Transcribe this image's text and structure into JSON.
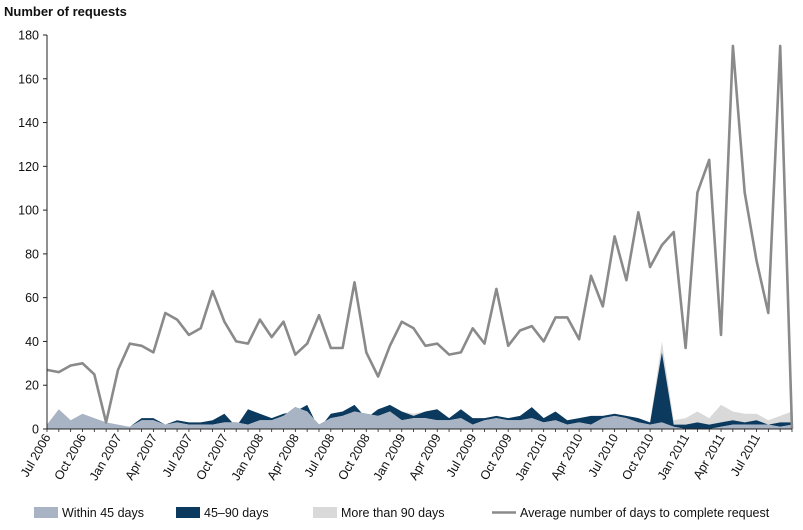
{
  "chart_data": {
    "type": "area",
    "ylabel": "Number of requests",
    "ylim": [
      0,
      180
    ],
    "yticks": [
      0,
      20,
      40,
      60,
      80,
      100,
      120,
      140,
      160,
      180
    ],
    "xtick_labels": [
      "Jul 2006",
      "Oct 2006",
      "Jan 2007",
      "Apr 2007",
      "Jul 2007",
      "Oct 2007",
      "Jan 2008",
      "Apr 2008",
      "Jul 2008",
      "Oct 2008",
      "Jan 2009",
      "Apr 2009",
      "Jul 2009",
      "Oct 2009",
      "Jan 2010",
      "Apr 2010",
      "Jul 2010",
      "Oct 2010",
      "Jan 2011",
      "Apr 2011",
      "Jul 2011"
    ],
    "colors": {
      "within_45": "#a8b3c4",
      "d45_90": "#0b3a5e",
      "over_90": "#d9d9d9",
      "average": "#8a8a8a",
      "axis": "#222222"
    },
    "series": [
      {
        "name": "Within 45 days",
        "kind": "area",
        "values": [
          2,
          9,
          4,
          7,
          5,
          3,
          2,
          1,
          4,
          4,
          2,
          3,
          2,
          2,
          2,
          3,
          3,
          2,
          4,
          4,
          6,
          10,
          8,
          2,
          5,
          6,
          8,
          7,
          6,
          8,
          4,
          5,
          5,
          4,
          4,
          5,
          2,
          4,
          5,
          4,
          4,
          5,
          3,
          4,
          2,
          3,
          2,
          5,
          6,
          5,
          3,
          2,
          3,
          1,
          0,
          0,
          0,
          1,
          2,
          2,
          2,
          2,
          1,
          2
        ]
      },
      {
        "name": "45–90 days",
        "kind": "area",
        "values": [
          0,
          0,
          0,
          0,
          0,
          0,
          0,
          0,
          1,
          1,
          0,
          1,
          1,
          1,
          2,
          4,
          -2,
          7,
          3,
          1,
          1,
          -2,
          3,
          -2,
          2,
          2,
          3,
          -2,
          3,
          3,
          4,
          1,
          3,
          5,
          1,
          4,
          3,
          1,
          1,
          1,
          2,
          5,
          2,
          4,
          2,
          2,
          4,
          1,
          1,
          1,
          2,
          1,
          32,
          1,
          2,
          3,
          2,
          2,
          2,
          1,
          2,
          0,
          2,
          1
        ]
      },
      {
        "name": "More than 90 days",
        "kind": "area",
        "values": [
          0,
          0,
          0,
          0,
          0,
          0,
          0,
          0,
          0,
          0,
          0,
          0,
          0,
          0,
          0,
          0,
          0,
          0,
          0,
          0,
          0,
          0,
          0,
          0,
          0,
          0,
          0,
          0,
          0,
          0,
          0,
          1,
          0,
          0,
          0,
          0,
          0,
          0,
          0,
          0,
          0,
          0,
          0,
          0,
          0,
          0,
          0,
          0,
          0,
          0,
          0,
          0,
          5,
          2,
          3,
          5,
          3,
          8,
          4,
          4,
          3,
          2,
          3,
          5
        ]
      },
      {
        "name": "Average number of days to complete request",
        "kind": "line",
        "values": [
          27,
          26,
          29,
          30,
          25,
          3,
          27,
          39,
          38,
          35,
          53,
          50,
          43,
          46,
          63,
          49,
          40,
          39,
          50,
          42,
          49,
          34,
          39,
          52,
          37,
          37,
          67,
          35,
          24,
          38,
          49,
          46,
          38,
          39,
          34,
          35,
          46,
          39,
          64,
          38,
          45,
          47,
          40,
          51,
          51,
          41,
          70,
          56,
          88,
          68,
          99,
          74,
          84,
          90,
          37,
          108,
          123,
          43,
          175,
          108,
          77,
          53,
          175,
          0
        ]
      }
    ]
  }
}
